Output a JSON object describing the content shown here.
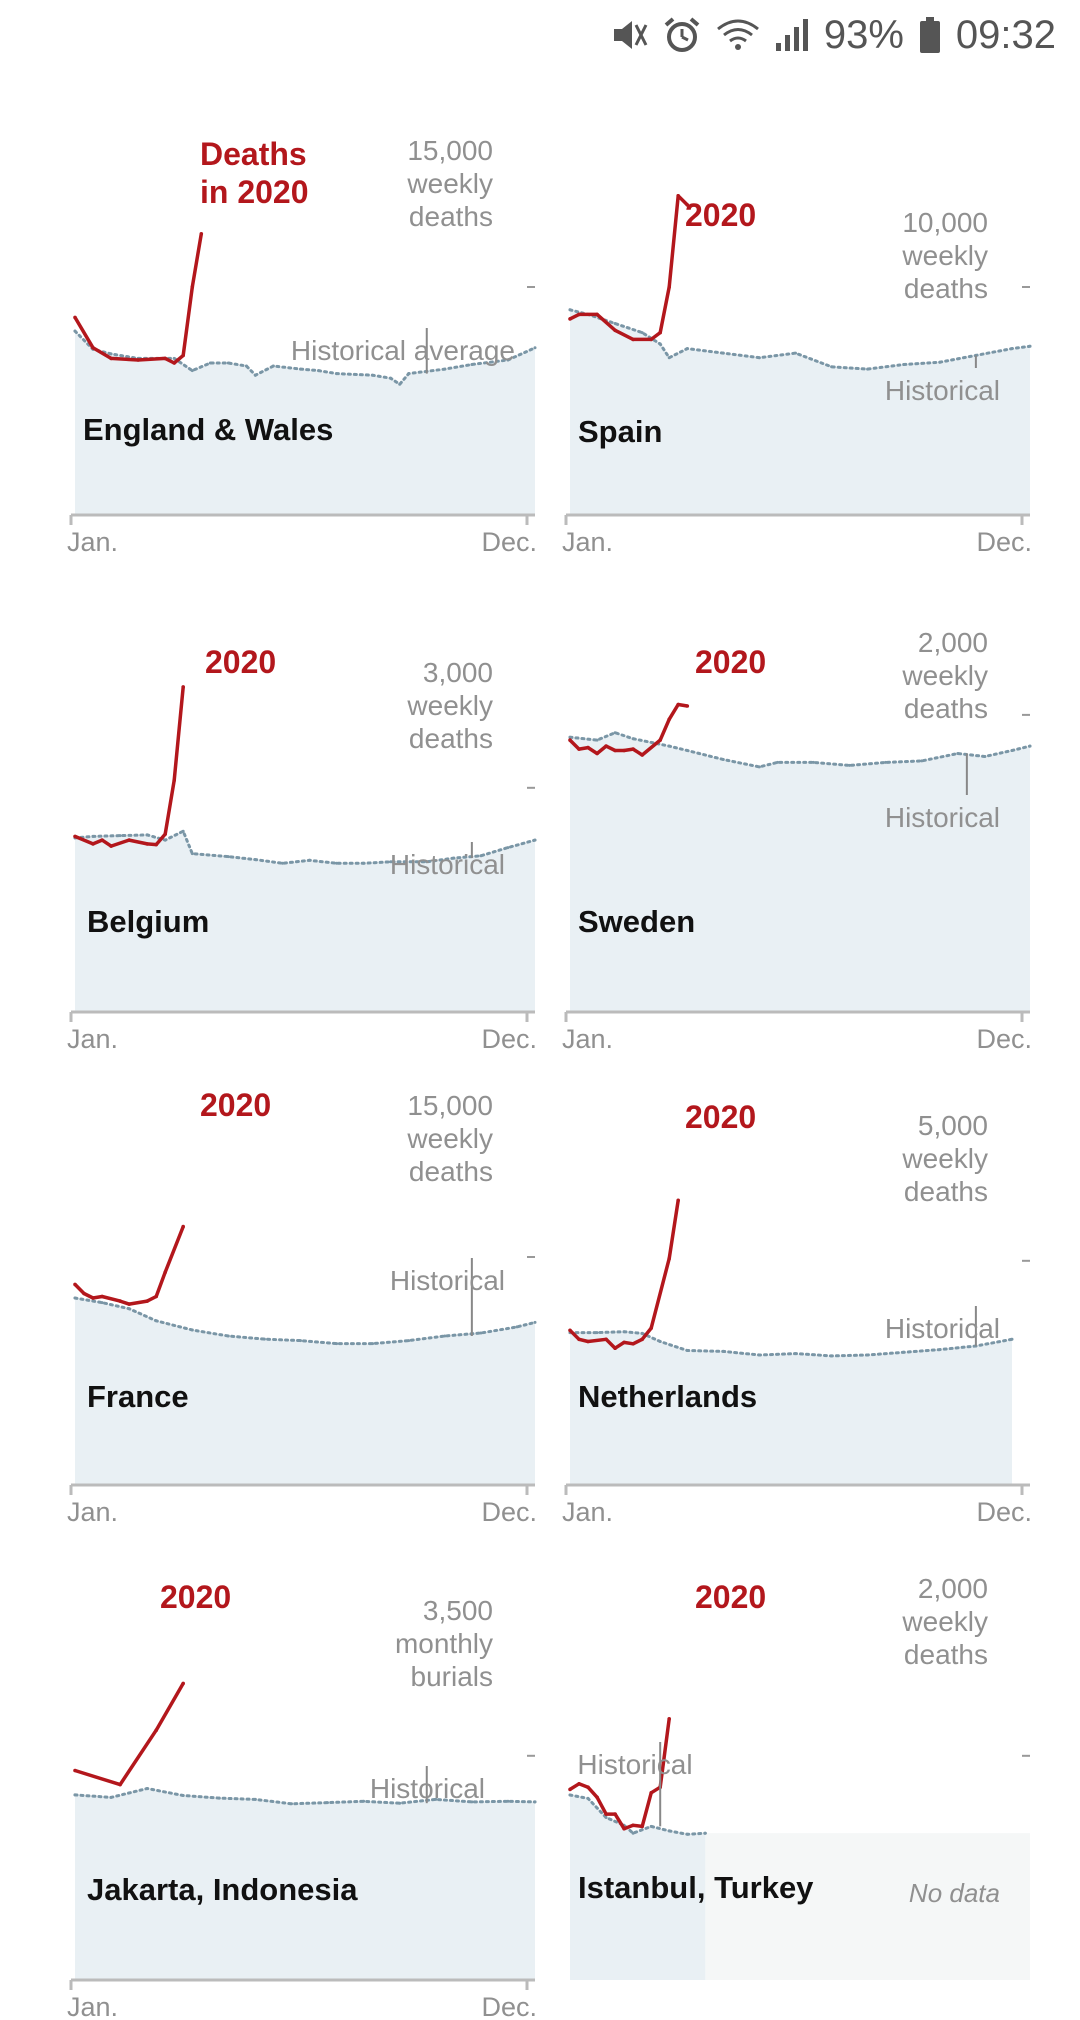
{
  "status_bar": {
    "battery": "93%",
    "time": "09:32",
    "icons": [
      "mute-vibrate-icon",
      "alarm-icon",
      "wifi-icon",
      "signal-icon",
      "battery-icon"
    ]
  },
  "colors": {
    "year_2020": "#b3171c",
    "historical": "#7a96a6",
    "area_fill": "#e9f0f4",
    "no_data_fill": "#f5f7f7",
    "axis": "#bbbbbb"
  },
  "chart_data": [
    {
      "type": "line",
      "place": "England & Wales",
      "unit_label": [
        "15,000",
        "weekly",
        "deaths"
      ],
      "unit_value": 15000,
      "ylim": [
        0,
        25000
      ],
      "red_label": [
        "Deaths",
        "in 2020"
      ],
      "hist_label": "Historical average",
      "hist_leader_week": 40,
      "x_tick_labels": [
        "Jan.",
        "Dec."
      ],
      "historical": [
        {
          "week": 1,
          "value": 12100
        },
        {
          "week": 3,
          "value": 10900
        },
        {
          "week": 5,
          "value": 10600
        },
        {
          "week": 8,
          "value": 10300
        },
        {
          "week": 12,
          "value": 10300
        },
        {
          "week": 14,
          "value": 9500
        },
        {
          "week": 16,
          "value": 10000
        },
        {
          "week": 18,
          "value": 10000
        },
        {
          "week": 20,
          "value": 9800
        },
        {
          "week": 21,
          "value": 9200
        },
        {
          "week": 23,
          "value": 9800
        },
        {
          "week": 26,
          "value": 9600
        },
        {
          "week": 28,
          "value": 9500
        },
        {
          "week": 30,
          "value": 9300
        },
        {
          "week": 34,
          "value": 9200
        },
        {
          "week": 36,
          "value": 9000
        },
        {
          "week": 37,
          "value": 8600
        },
        {
          "week": 38,
          "value": 9300
        },
        {
          "week": 42,
          "value": 9600
        },
        {
          "week": 45,
          "value": 9900
        },
        {
          "week": 49,
          "value": 10200
        },
        {
          "week": 52,
          "value": 11000
        }
      ],
      "series_2020": [
        {
          "week": 1,
          "value": 13000
        },
        {
          "week": 3,
          "value": 11000
        },
        {
          "week": 5,
          "value": 10300
        },
        {
          "week": 8,
          "value": 10200
        },
        {
          "week": 11,
          "value": 10300
        },
        {
          "week": 12,
          "value": 10000
        },
        {
          "week": 13,
          "value": 10500
        },
        {
          "week": 14,
          "value": 15000
        },
        {
          "week": 15,
          "value": 18500
        }
      ]
    },
    {
      "type": "line",
      "place": "Spain",
      "unit_label": [
        "10,000",
        "weekly",
        "deaths"
      ],
      "unit_value": 10000,
      "ylim": [
        0,
        16667
      ],
      "red_label": [
        "2020"
      ],
      "hist_label": "Historical",
      "hist_leader_week": 46,
      "x_tick_labels": [
        "Jan.",
        "Dec."
      ],
      "historical": [
        {
          "week": 1,
          "value": 9000
        },
        {
          "week": 3,
          "value": 8800
        },
        {
          "week": 6,
          "value": 8400
        },
        {
          "week": 9,
          "value": 8000
        },
        {
          "week": 11,
          "value": 7500
        },
        {
          "week": 12,
          "value": 6900
        },
        {
          "week": 14,
          "value": 7300
        },
        {
          "week": 18,
          "value": 7100
        },
        {
          "week": 22,
          "value": 6900
        },
        {
          "week": 26,
          "value": 7100
        },
        {
          "week": 30,
          "value": 6500
        },
        {
          "week": 34,
          "value": 6400
        },
        {
          "week": 38,
          "value": 6600
        },
        {
          "week": 42,
          "value": 6700
        },
        {
          "week": 46,
          "value": 7000
        },
        {
          "week": 50,
          "value": 7300
        },
        {
          "week": 52,
          "value": 7400
        }
      ],
      "series_2020": [
        {
          "week": 1,
          "value": 8600
        },
        {
          "week": 2,
          "value": 8800
        },
        {
          "week": 4,
          "value": 8800
        },
        {
          "week": 6,
          "value": 8100
        },
        {
          "week": 8,
          "value": 7700
        },
        {
          "week": 10,
          "value": 7700
        },
        {
          "week": 11,
          "value": 8000
        },
        {
          "week": 12,
          "value": 10000
        },
        {
          "week": 13,
          "value": 14000
        },
        {
          "week": 14,
          "value": 13600
        }
      ]
    },
    {
      "type": "line",
      "place": "Belgium",
      "unit_label": [
        "3,000",
        "weekly",
        "deaths"
      ],
      "unit_value": 3000,
      "ylim": [
        0,
        5085
      ],
      "red_label": [
        "2020"
      ],
      "hist_label": "Historical",
      "hist_leader_week": 45,
      "x_tick_labels": [
        "Jan.",
        "Dec."
      ],
      "historical": [
        {
          "week": 1,
          "value": 2330
        },
        {
          "week": 3,
          "value": 2350
        },
        {
          "week": 6,
          "value": 2360
        },
        {
          "week": 9,
          "value": 2370
        },
        {
          "week": 11,
          "value": 2300
        },
        {
          "week": 13,
          "value": 2420
        },
        {
          "week": 14,
          "value": 2120
        },
        {
          "week": 18,
          "value": 2080
        },
        {
          "week": 21,
          "value": 2040
        },
        {
          "week": 24,
          "value": 1990
        },
        {
          "week": 27,
          "value": 2030
        },
        {
          "week": 30,
          "value": 1990
        },
        {
          "week": 33,
          "value": 1990
        },
        {
          "week": 36,
          "value": 2010
        },
        {
          "week": 40,
          "value": 2010
        },
        {
          "week": 43,
          "value": 2060
        },
        {
          "week": 46,
          "value": 2090
        },
        {
          "week": 49,
          "value": 2200
        },
        {
          "week": 52,
          "value": 2300
        }
      ],
      "series_2020": [
        {
          "week": 1,
          "value": 2350
        },
        {
          "week": 3,
          "value": 2250
        },
        {
          "week": 4,
          "value": 2300
        },
        {
          "week": 5,
          "value": 2220
        },
        {
          "week": 7,
          "value": 2300
        },
        {
          "week": 9,
          "value": 2250
        },
        {
          "week": 10,
          "value": 2240
        },
        {
          "week": 11,
          "value": 2380
        },
        {
          "week": 12,
          "value": 3100
        },
        {
          "week": 13,
          "value": 4350
        }
      ]
    },
    {
      "type": "line",
      "place": "Sweden",
      "unit_label": [
        "2,000",
        "weekly",
        "deaths"
      ],
      "unit_value": 2000,
      "ylim": [
        0,
        2558
      ],
      "red_label": [
        "2020"
      ],
      "hist_label": "Historical",
      "hist_leader_week": 45,
      "x_tick_labels": [
        "Jan.",
        "Dec."
      ],
      "historical": [
        {
          "week": 1,
          "value": 1850
        },
        {
          "week": 4,
          "value": 1830
        },
        {
          "week": 6,
          "value": 1880
        },
        {
          "week": 8,
          "value": 1840
        },
        {
          "week": 12,
          "value": 1790
        },
        {
          "week": 14,
          "value": 1760
        },
        {
          "week": 18,
          "value": 1700
        },
        {
          "week": 22,
          "value": 1650
        },
        {
          "week": 24,
          "value": 1680
        },
        {
          "week": 28,
          "value": 1680
        },
        {
          "week": 32,
          "value": 1660
        },
        {
          "week": 36,
          "value": 1680
        },
        {
          "week": 40,
          "value": 1690
        },
        {
          "week": 44,
          "value": 1740
        },
        {
          "week": 47,
          "value": 1720
        },
        {
          "week": 50,
          "value": 1760
        },
        {
          "week": 52,
          "value": 1790
        }
      ],
      "series_2020": [
        {
          "week": 1,
          "value": 1830
        },
        {
          "week": 2,
          "value": 1770
        },
        {
          "week": 3,
          "value": 1780
        },
        {
          "week": 4,
          "value": 1740
        },
        {
          "week": 5,
          "value": 1790
        },
        {
          "week": 6,
          "value": 1760
        },
        {
          "week": 7,
          "value": 1760
        },
        {
          "week": 8,
          "value": 1770
        },
        {
          "week": 9,
          "value": 1730
        },
        {
          "week": 11,
          "value": 1830
        },
        {
          "week": 12,
          "value": 1970
        },
        {
          "week": 13,
          "value": 2070
        },
        {
          "week": 14,
          "value": 2060
        }
      ]
    },
    {
      "type": "line",
      "place": "France",
      "unit_label": [
        "15,000",
        "weekly",
        "deaths"
      ],
      "unit_value": 15000,
      "ylim": [
        0,
        25000
      ],
      "red_label": [
        "2020"
      ],
      "hist_label": "Historical",
      "hist_leader_week": 45,
      "x_tick_labels": [
        "Jan.",
        "Dec."
      ],
      "historical": [
        {
          "week": 1,
          "value": 12300
        },
        {
          "week": 4,
          "value": 12000
        },
        {
          "week": 7,
          "value": 11600
        },
        {
          "week": 10,
          "value": 10800
        },
        {
          "week": 14,
          "value": 10200
        },
        {
          "week": 18,
          "value": 9800
        },
        {
          "week": 22,
          "value": 9600
        },
        {
          "week": 26,
          "value": 9500
        },
        {
          "week": 30,
          "value": 9300
        },
        {
          "week": 34,
          "value": 9300
        },
        {
          "week": 38,
          "value": 9500
        },
        {
          "week": 42,
          "value": 9800
        },
        {
          "week": 46,
          "value": 10000
        },
        {
          "week": 50,
          "value": 10400
        },
        {
          "week": 52,
          "value": 10700
        }
      ],
      "series_2020": [
        {
          "week": 1,
          "value": 13200
        },
        {
          "week": 2,
          "value": 12600
        },
        {
          "week": 3,
          "value": 12300
        },
        {
          "week": 4,
          "value": 12400
        },
        {
          "week": 6,
          "value": 12100
        },
        {
          "week": 7,
          "value": 11900
        },
        {
          "week": 9,
          "value": 12100
        },
        {
          "week": 10,
          "value": 12400
        },
        {
          "week": 11,
          "value": 14000
        },
        {
          "week": 13,
          "value": 17000
        }
      ]
    },
    {
      "type": "line",
      "place": "Netherlands",
      "unit_label": [
        "5,000",
        "weekly",
        "deaths"
      ],
      "unit_value": 5000,
      "ylim": [
        0,
        8475
      ],
      "red_label": [
        "2020"
      ],
      "hist_label": "Historical",
      "hist_leader_week": 46,
      "x_tick_labels": [
        "Jan.",
        "Dec."
      ],
      "historical": [
        {
          "week": 1,
          "value": 3400
        },
        {
          "week": 4,
          "value": 3400
        },
        {
          "week": 7,
          "value": 3420
        },
        {
          "week": 9,
          "value": 3380
        },
        {
          "week": 11,
          "value": 3200
        },
        {
          "week": 14,
          "value": 3000
        },
        {
          "week": 18,
          "value": 2980
        },
        {
          "week": 22,
          "value": 2900
        },
        {
          "week": 26,
          "value": 2930
        },
        {
          "week": 30,
          "value": 2880
        },
        {
          "week": 34,
          "value": 2900
        },
        {
          "week": 38,
          "value": 2960
        },
        {
          "week": 42,
          "value": 3020
        },
        {
          "week": 46,
          "value": 3100
        },
        {
          "week": 50,
          "value": 3250
        }
      ],
      "series_2020": [
        {
          "week": 1,
          "value": 3450
        },
        {
          "week": 2,
          "value": 3250
        },
        {
          "week": 3,
          "value": 3200
        },
        {
          "week": 5,
          "value": 3250
        },
        {
          "week": 6,
          "value": 3050
        },
        {
          "week": 7,
          "value": 3180
        },
        {
          "week": 8,
          "value": 3150
        },
        {
          "week": 9,
          "value": 3250
        },
        {
          "week": 10,
          "value": 3500
        },
        {
          "week": 12,
          "value": 5050
        },
        {
          "week": 13,
          "value": 6350
        }
      ]
    },
    {
      "type": "line",
      "place": "Jakarta, Indonesia",
      "unit_label": [
        "3,500",
        "monthly",
        "burials"
      ],
      "unit_value": 3500,
      "ylim": [
        0,
        5932
      ],
      "red_label": [
        "2020"
      ],
      "hist_label": "Historical",
      "hist_leader_week": 40,
      "x_tick_labels": [
        "Jan.",
        "Dec."
      ],
      "historical": [
        {
          "week": 1,
          "value": 2890
        },
        {
          "week": 5,
          "value": 2850
        },
        {
          "week": 9,
          "value": 2990
        },
        {
          "week": 13,
          "value": 2880
        },
        {
          "week": 17,
          "value": 2840
        },
        {
          "week": 21,
          "value": 2820
        },
        {
          "week": 25,
          "value": 2750
        },
        {
          "week": 29,
          "value": 2770
        },
        {
          "week": 33,
          "value": 2790
        },
        {
          "week": 37,
          "value": 2760
        },
        {
          "week": 41,
          "value": 2820
        },
        {
          "week": 45,
          "value": 2780
        },
        {
          "week": 49,
          "value": 2790
        },
        {
          "week": 52,
          "value": 2780
        }
      ],
      "series_2020": [
        {
          "week": 1,
          "value": 3270
        },
        {
          "week": 6,
          "value": 3050
        },
        {
          "week": 10,
          "value": 3900
        },
        {
          "week": 13,
          "value": 4630
        }
      ]
    },
    {
      "type": "line",
      "place": "Istanbul, Turkey",
      "unit_label": [
        "2,000",
        "weekly",
        "deaths"
      ],
      "unit_value": 2000,
      "ylim": [
        0,
        3390
      ],
      "red_label": [
        "2020"
      ],
      "hist_label": "Historical",
      "hist_leader_week": 11,
      "no_data_label": "No data",
      "x_tick_labels": [],
      "historical": [
        {
          "week": 1,
          "value": 1650
        },
        {
          "week": 3,
          "value": 1620
        },
        {
          "week": 5,
          "value": 1450
        },
        {
          "week": 7,
          "value": 1380
        },
        {
          "week": 8,
          "value": 1310
        },
        {
          "week": 10,
          "value": 1370
        },
        {
          "week": 12,
          "value": 1330
        },
        {
          "week": 14,
          "value": 1300
        },
        {
          "week": 16,
          "value": 1310
        }
      ],
      "series_2020": [
        {
          "week": 1,
          "value": 1700
        },
        {
          "week": 2,
          "value": 1750
        },
        {
          "week": 3,
          "value": 1720
        },
        {
          "week": 4,
          "value": 1630
        },
        {
          "week": 5,
          "value": 1480
        },
        {
          "week": 6,
          "value": 1480
        },
        {
          "week": 7,
          "value": 1350
        },
        {
          "week": 8,
          "value": 1380
        },
        {
          "week": 9,
          "value": 1370
        },
        {
          "week": 10,
          "value": 1670
        },
        {
          "week": 11,
          "value": 1720
        },
        {
          "week": 12,
          "value": 2330
        }
      ]
    }
  ]
}
